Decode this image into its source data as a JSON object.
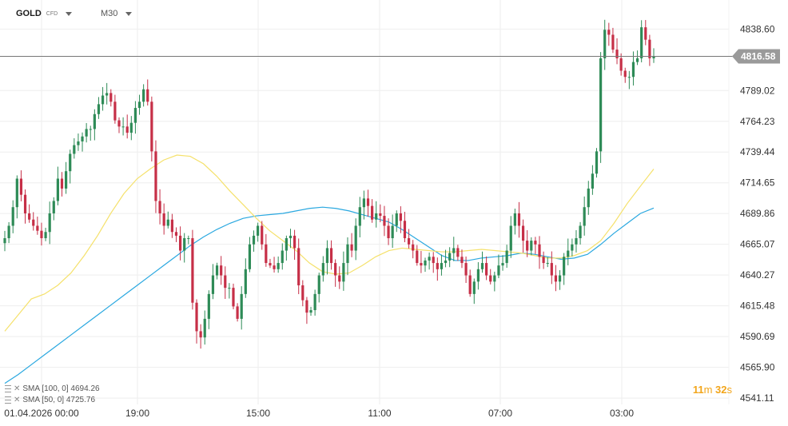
{
  "header": {
    "symbol": "GOLD",
    "symbol_type": "CFD",
    "timeframe": "M30"
  },
  "indicators": [
    {
      "label": "SMA [100, 0] 4694.26",
      "color": "#2aa8e0"
    },
    {
      "label": "SMA [50, 0] 4725.76",
      "color": "#f5e16b"
    }
  ],
  "countdown": {
    "minutes": "11",
    "m": "m",
    "seconds": "32",
    "s": "s"
  },
  "chart_data": {
    "type": "candlestick",
    "y_ticks": [
      "4838.60",
      "4789.02",
      "4764.23",
      "4739.44",
      "4714.65",
      "4689.86",
      "4665.07",
      "4640.27",
      "4615.48",
      "4590.69",
      "4565.90",
      "4541.11"
    ],
    "y_tick_values": [
      4838.6,
      4789.02,
      4764.23,
      4739.44,
      4714.65,
      4689.86,
      4665.07,
      4640.27,
      4615.48,
      4590.69,
      4565.9,
      4541.11
    ],
    "current_price": "4816.58",
    "current_price_value": 4816.58,
    "x_ticks": [
      "01.04.2026 00:00",
      "19:00",
      "15:00",
      "11:00",
      "07:00",
      "03:00"
    ],
    "ylim": [
      4536,
      4862
    ],
    "colors": {
      "up": "#2e8b57",
      "down": "#c62f47",
      "sma100": "#2aa8e0",
      "sma50": "#f5e16b",
      "price_line": "#777777",
      "price_label_bg": "#9a9a9a"
    },
    "candle_closes": [
      4670,
      4680,
      4695,
      4718,
      4705,
      4690,
      4685,
      4680,
      4676,
      4670,
      4675,
      4690,
      4700,
      4718,
      4710,
      4724,
      4738,
      4745,
      4748,
      4752,
      4758,
      4758,
      4770,
      4778,
      4785,
      4787,
      4780,
      4765,
      4760,
      4760,
      4755,
      4763,
      4775,
      4780,
      4790,
      4780,
      4740,
      4700,
      4690,
      4680,
      4685,
      4675,
      4672,
      4660,
      4670,
      4670,
      4618,
      4595,
      4590,
      4605,
      4625,
      4640,
      4648,
      4640,
      4630,
      4630,
      4615,
      4605,
      4625,
      4645,
      4665,
      4672,
      4680,
      4665,
      4650,
      4648,
      4645,
      4650,
      4660,
      4670,
      4672,
      4662,
      4632,
      4620,
      4610,
      4612,
      4625,
      4640,
      4650,
      4662,
      4650,
      4640,
      4635,
      4650,
      4665,
      4660,
      4680,
      4695,
      4702,
      4696,
      4685,
      4690,
      4688,
      4680,
      4670,
      4680,
      4690,
      4684,
      4670,
      4665,
      4660,
      4650,
      4648,
      4652,
      4655,
      4650,
      4645,
      4650,
      4652,
      4658,
      4662,
      4655,
      4650,
      4640,
      4625,
      4635,
      4645,
      4650,
      4640,
      4635,
      4640,
      4648,
      4650,
      4660,
      4680,
      4690,
      4680,
      4668,
      4660,
      4668,
      4665,
      4655,
      4650,
      4650,
      4640,
      4635,
      4640,
      4655,
      4660,
      4665,
      4670,
      4680,
      4695,
      4710,
      4722,
      4740,
      4815,
      4838,
      4834,
      4822,
      4815,
      4805,
      4800,
      4800,
      4812,
      4815,
      4840,
      4830,
      4815,
      4816.58
    ],
    "sma100_values": [
      4553,
      4560,
      4568,
      4576,
      4584,
      4592,
      4600,
      4608,
      4616,
      4624,
      4632,
      4640,
      4648,
      4656,
      4664,
      4671,
      4677,
      4682,
      4686,
      4688,
      4689,
      4690,
      4692,
      4694,
      4695,
      4694,
      4692,
      4689,
      4686,
      4683,
      4677,
      4670,
      4663,
      4656,
      4652,
      4652,
      4654,
      4655,
      4656,
      4658,
      4657,
      4655,
      4653,
      4654,
      4657,
      4665,
      4674,
      4682,
      4690,
      4694.26
    ],
    "sma50_values": [
      4595,
      4608,
      4621,
      4625,
      4632,
      4642,
      4656,
      4672,
      4690,
      4706,
      4718,
      4726,
      4733,
      4737,
      4736,
      4730,
      4720,
      4708,
      4697,
      4686,
      4676,
      4668,
      4660,
      4650,
      4643,
      4641,
      4642,
      4648,
      4655,
      4660,
      4662,
      4661,
      4660,
      4659,
      4659,
      4660,
      4661,
      4660,
      4659,
      4658,
      4656,
      4654,
      4654,
      4656,
      4660,
      4668,
      4682,
      4698,
      4712,
      4725.76
    ]
  }
}
